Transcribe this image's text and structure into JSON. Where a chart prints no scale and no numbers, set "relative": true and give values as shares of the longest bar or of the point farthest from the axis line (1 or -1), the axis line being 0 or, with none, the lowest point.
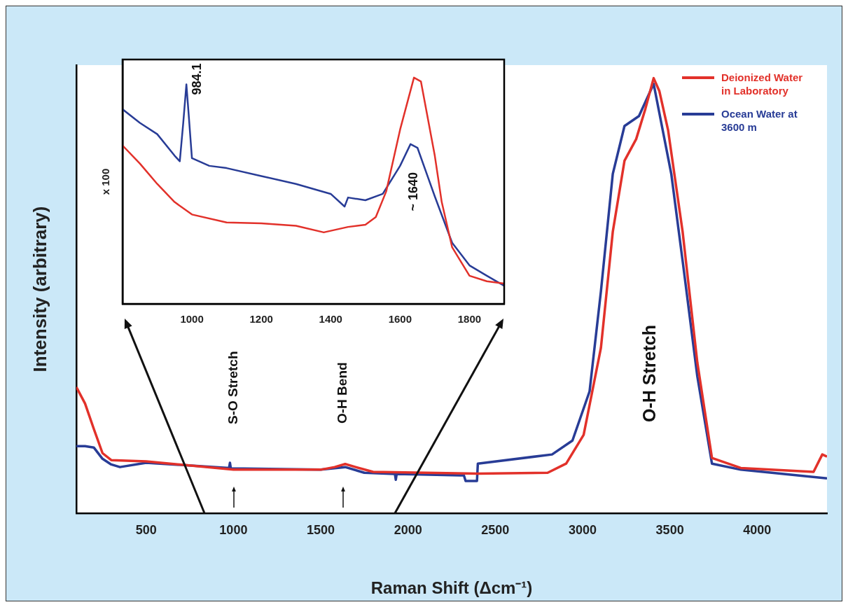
{
  "chart_data": [
    {
      "type": "line",
      "xlabel": "Raman Shift (Δcm⁻¹)",
      "ylabel": "Intensity (arbitrary)",
      "relative": true,
      "xlim": [
        100,
        4400
      ],
      "xticks": [
        500,
        1000,
        1500,
        2000,
        2500,
        3000,
        3500,
        4000
      ],
      "legend": "top right",
      "series": [
        {
          "name": "Deionized Water in Laboratory",
          "color": "#e2312a",
          "x": [
            100,
            150,
            200,
            250,
            300,
            500,
            1000,
            1500,
            1580,
            1640,
            1700,
            1800,
            2400,
            2800,
            2906,
            3006,
            3105,
            3173,
            3240,
            3307,
            3360,
            3407,
            3440,
            3490,
            3573,
            3657,
            3741,
            3906,
            4323,
            4373,
            4400
          ],
          "values": [
            0.29,
            0.252,
            0.194,
            0.138,
            0.122,
            0.119,
            0.1,
            0.1,
            0.106,
            0.113,
            0.106,
            0.095,
            0.091,
            0.093,
            0.114,
            0.18,
            0.38,
            0.647,
            0.81,
            0.86,
            0.93,
            1.0,
            0.97,
            0.88,
            0.647,
            0.347,
            0.127,
            0.104,
            0.095,
            0.135,
            0.13
          ]
        },
        {
          "name": "Ocean Water at 3600 m",
          "color": "#283c96",
          "x": [
            100,
            150,
            200,
            250,
            300,
            350,
            500,
            975,
            980,
            985,
            1500,
            1640,
            1750,
            1925,
            1930,
            1935,
            2300,
            2320,
            2330,
            2395,
            2400,
            2825,
            2942,
            3040,
            3105,
            3173,
            3240,
            3323,
            3407,
            3508,
            3573,
            3657,
            3741,
            3906,
            4400
          ],
          "values": [
            0.154,
            0.154,
            0.151,
            0.125,
            0.112,
            0.106,
            0.116,
            0.104,
            0.116,
            0.103,
            0.1,
            0.106,
            0.093,
            0.09,
            0.077,
            0.09,
            0.087,
            0.087,
            0.074,
            0.074,
            0.114,
            0.135,
            0.167,
            0.28,
            0.51,
            0.78,
            0.89,
            0.913,
            0.987,
            0.78,
            0.58,
            0.315,
            0.114,
            0.1,
            0.08
          ]
        }
      ],
      "annotations": [
        "S-O Stretch",
        "O-H Bend",
        "O-H Stretch"
      ]
    },
    {
      "type": "line",
      "ylabel": "x 100",
      "relative": true,
      "xlim": [
        800,
        1900
      ],
      "xticks": [
        1000,
        1200,
        1400,
        1600,
        1800
      ],
      "series": [
        {
          "color": "#e2312a",
          "x": [
            800,
            850,
            900,
            950,
            1000,
            1100,
            1200,
            1300,
            1380,
            1450,
            1500,
            1530,
            1560,
            1600,
            1640,
            1660,
            1700,
            1720,
            1750,
            1800,
            1850,
            1900
          ],
          "values": [
            0.7,
            0.62,
            0.53,
            0.45,
            0.395,
            0.36,
            0.356,
            0.345,
            0.316,
            0.34,
            0.35,
            0.384,
            0.497,
            0.77,
            1.0,
            0.983,
            0.655,
            0.45,
            0.25,
            0.124,
            0.1,
            0.09
          ]
        },
        {
          "color": "#283c96",
          "x": [
            800,
            850,
            900,
            950,
            965,
            975,
            984,
            990,
            1000,
            1050,
            1100,
            1200,
            1300,
            1400,
            1440,
            1450,
            1500,
            1550,
            1600,
            1630,
            1650,
            1700,
            1750,
            1800,
            1850,
            1900
          ],
          "values": [
            0.86,
            0.8,
            0.75,
            0.655,
            0.63,
            0.8,
            0.97,
            0.85,
            0.644,
            0.61,
            0.6,
            0.565,
            0.53,
            0.486,
            0.43,
            0.47,
            0.458,
            0.486,
            0.61,
            0.706,
            0.69,
            0.475,
            0.27,
            0.17,
            0.124,
            0.08
          ]
        }
      ],
      "annotations": [
        {
          "text": "984.1",
          "x": 984.1,
          "y": 0.97
        },
        {
          "text": "~ 1640",
          "x": 1640,
          "y": 0.706
        }
      ]
    }
  ]
}
